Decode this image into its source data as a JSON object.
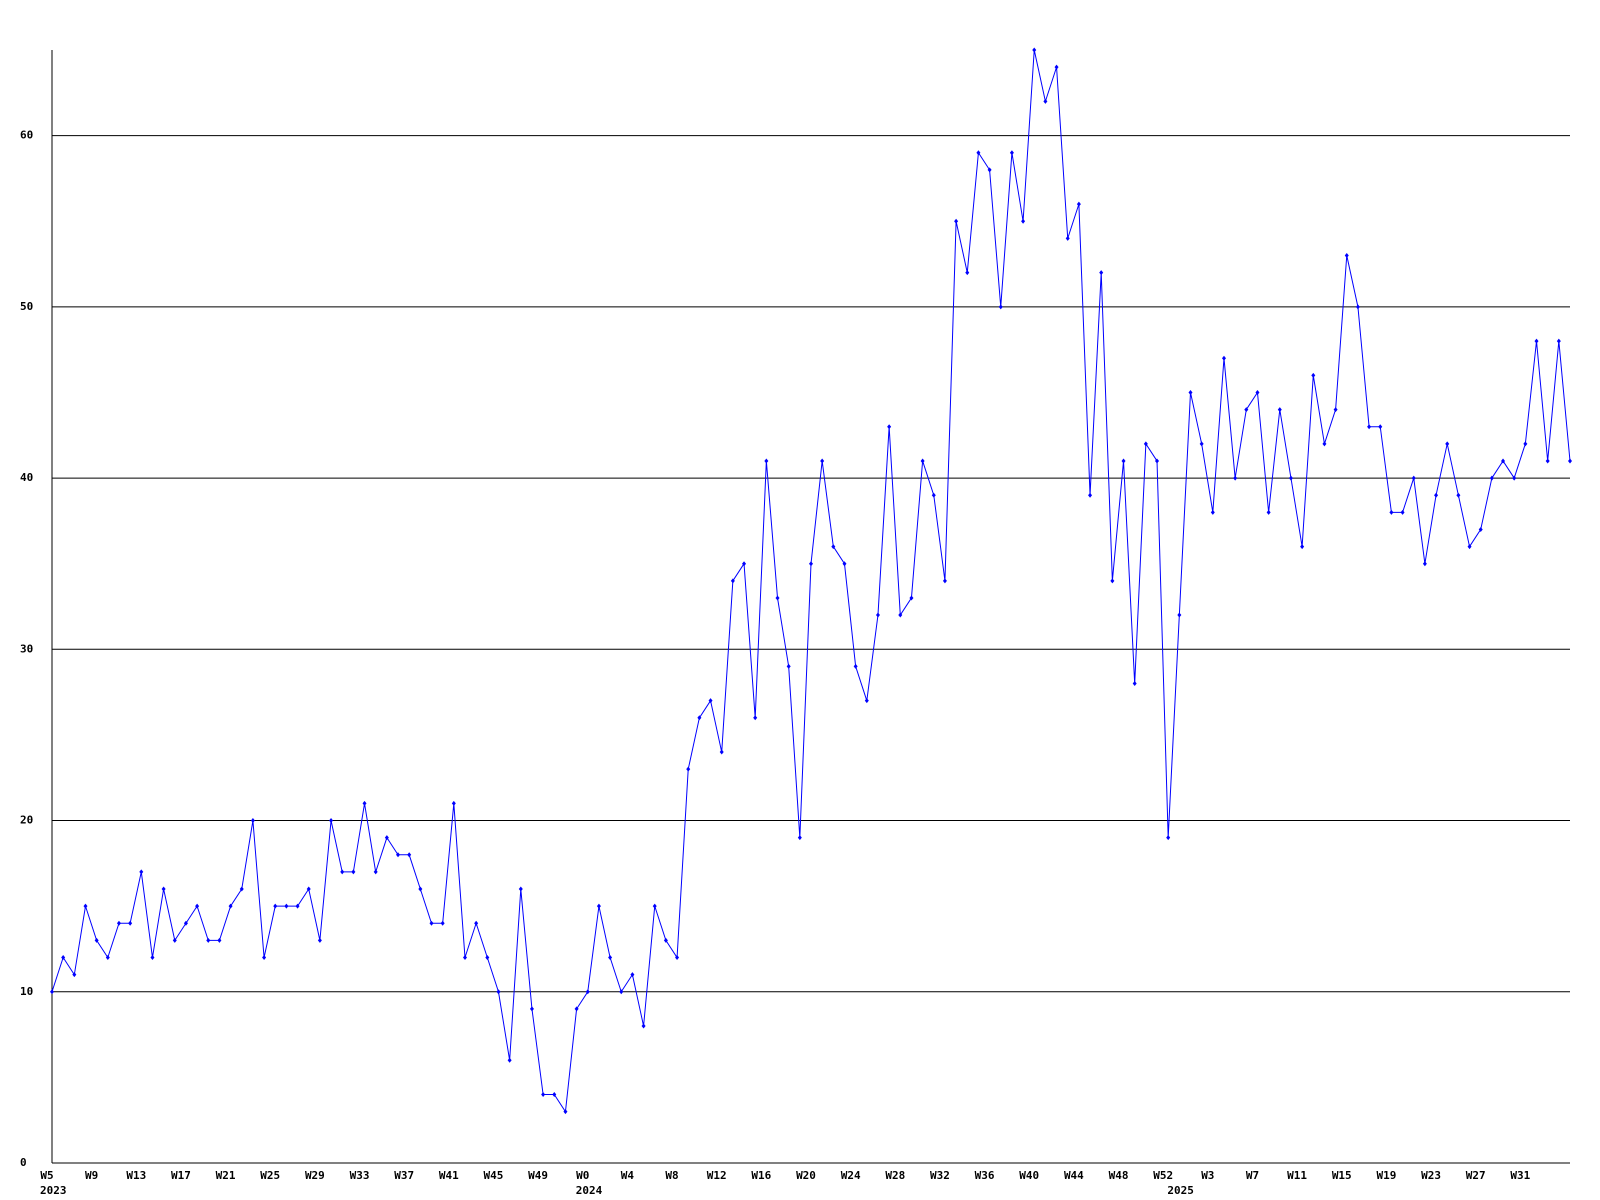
{
  "chart_data": {
    "type": "line",
    "categories": [
      "W5",
      null,
      null,
      null,
      "W9",
      null,
      null,
      null,
      "W13",
      null,
      null,
      null,
      "W17",
      null,
      null,
      null,
      "W21",
      null,
      null,
      null,
      "W25",
      null,
      null,
      null,
      "W29",
      null,
      null,
      null,
      "W33",
      null,
      null,
      null,
      "W37",
      null,
      null,
      null,
      "W41",
      null,
      null,
      null,
      "W45",
      null,
      null,
      null,
      "W49",
      null,
      null,
      null,
      "W0",
      null,
      null,
      null,
      "W4",
      null,
      null,
      null,
      "W8",
      null,
      null,
      null,
      "W12",
      null,
      null,
      null,
      "W16",
      null,
      null,
      null,
      "W20",
      null,
      null,
      null,
      "W24",
      null,
      null,
      null,
      "W28",
      null,
      null,
      null,
      "W32",
      null,
      null,
      null,
      "W36",
      null,
      null,
      null,
      "W40",
      null,
      null,
      null,
      "W44",
      null,
      null,
      null,
      "W48",
      null,
      null,
      null,
      "W52",
      null,
      null,
      null,
      "W3",
      null,
      null,
      null,
      "W7",
      null,
      null,
      null,
      "W11",
      null,
      null,
      null,
      "W15",
      null,
      null,
      null,
      "W19",
      null,
      null,
      null,
      "W23",
      null,
      null,
      null,
      "W27",
      null,
      null,
      null,
      "W31",
      null,
      null,
      null,
      null
    ],
    "category_years": [
      "2023",
      null,
      null,
      null,
      null,
      null,
      null,
      null,
      null,
      null,
      null,
      null,
      null,
      null,
      null,
      null,
      null,
      null,
      null,
      null,
      null,
      null,
      null,
      null,
      null,
      null,
      null,
      null,
      null,
      null,
      null,
      null,
      null,
      null,
      null,
      null,
      null,
      null,
      null,
      null,
      null,
      null,
      null,
      null,
      null,
      null,
      null,
      null,
      "2024",
      null,
      null,
      null,
      null,
      null,
      null,
      null,
      null,
      null,
      null,
      null,
      null,
      null,
      null,
      null,
      null,
      null,
      null,
      null,
      null,
      null,
      null,
      null,
      null,
      null,
      null,
      null,
      null,
      null,
      null,
      null,
      null,
      null,
      null,
      null,
      null,
      null,
      null,
      null,
      null,
      null,
      null,
      null,
      null,
      null,
      null,
      null,
      null,
      null,
      null,
      null,
      null,
      "2025",
      null,
      null,
      null,
      null,
      null,
      null,
      null,
      null,
      null,
      null,
      null,
      null,
      null,
      null,
      null,
      null,
      null,
      null,
      null,
      null,
      null,
      null,
      null,
      null,
      null,
      null,
      null,
      null,
      null,
      null,
      null,
      null,
      null,
      null,
      null
    ],
    "series": [
      {
        "color": "#0000ff",
        "values": [
          10,
          12,
          11,
          15,
          13,
          12,
          14,
          14,
          17,
          12,
          16,
          13,
          14,
          15,
          13,
          13,
          15,
          16,
          20,
          12,
          15,
          15,
          15,
          16,
          13,
          20,
          17,
          17,
          21,
          17,
          19,
          18,
          18,
          16,
          14,
          14,
          21,
          12,
          14,
          12,
          10,
          6,
          16,
          9,
          4,
          4,
          3,
          9,
          10,
          15,
          12,
          10,
          11,
          8,
          15,
          13,
          12,
          23,
          26,
          27,
          24,
          34,
          35,
          26,
          41,
          33,
          29,
          19,
          35,
          41,
          36,
          35,
          29,
          27,
          32,
          43,
          32,
          33,
          41,
          39,
          34,
          55,
          52,
          59,
          58,
          50,
          59,
          55,
          65,
          62,
          64,
          54,
          56,
          39,
          52,
          34,
          41,
          28,
          42,
          41,
          19,
          32,
          45,
          42,
          38,
          47,
          40,
          44,
          45,
          38,
          44,
          40,
          36,
          46,
          42,
          44,
          53,
          50,
          43,
          43,
          38,
          38,
          40,
          35,
          39,
          42,
          39,
          36,
          37,
          40,
          41,
          40,
          42,
          48,
          41,
          48,
          41
        ]
      }
    ],
    "ylim": [
      0,
      65
    ],
    "yticks": [
      0,
      10,
      20,
      30,
      40,
      50,
      60
    ],
    "grid": true
  }
}
